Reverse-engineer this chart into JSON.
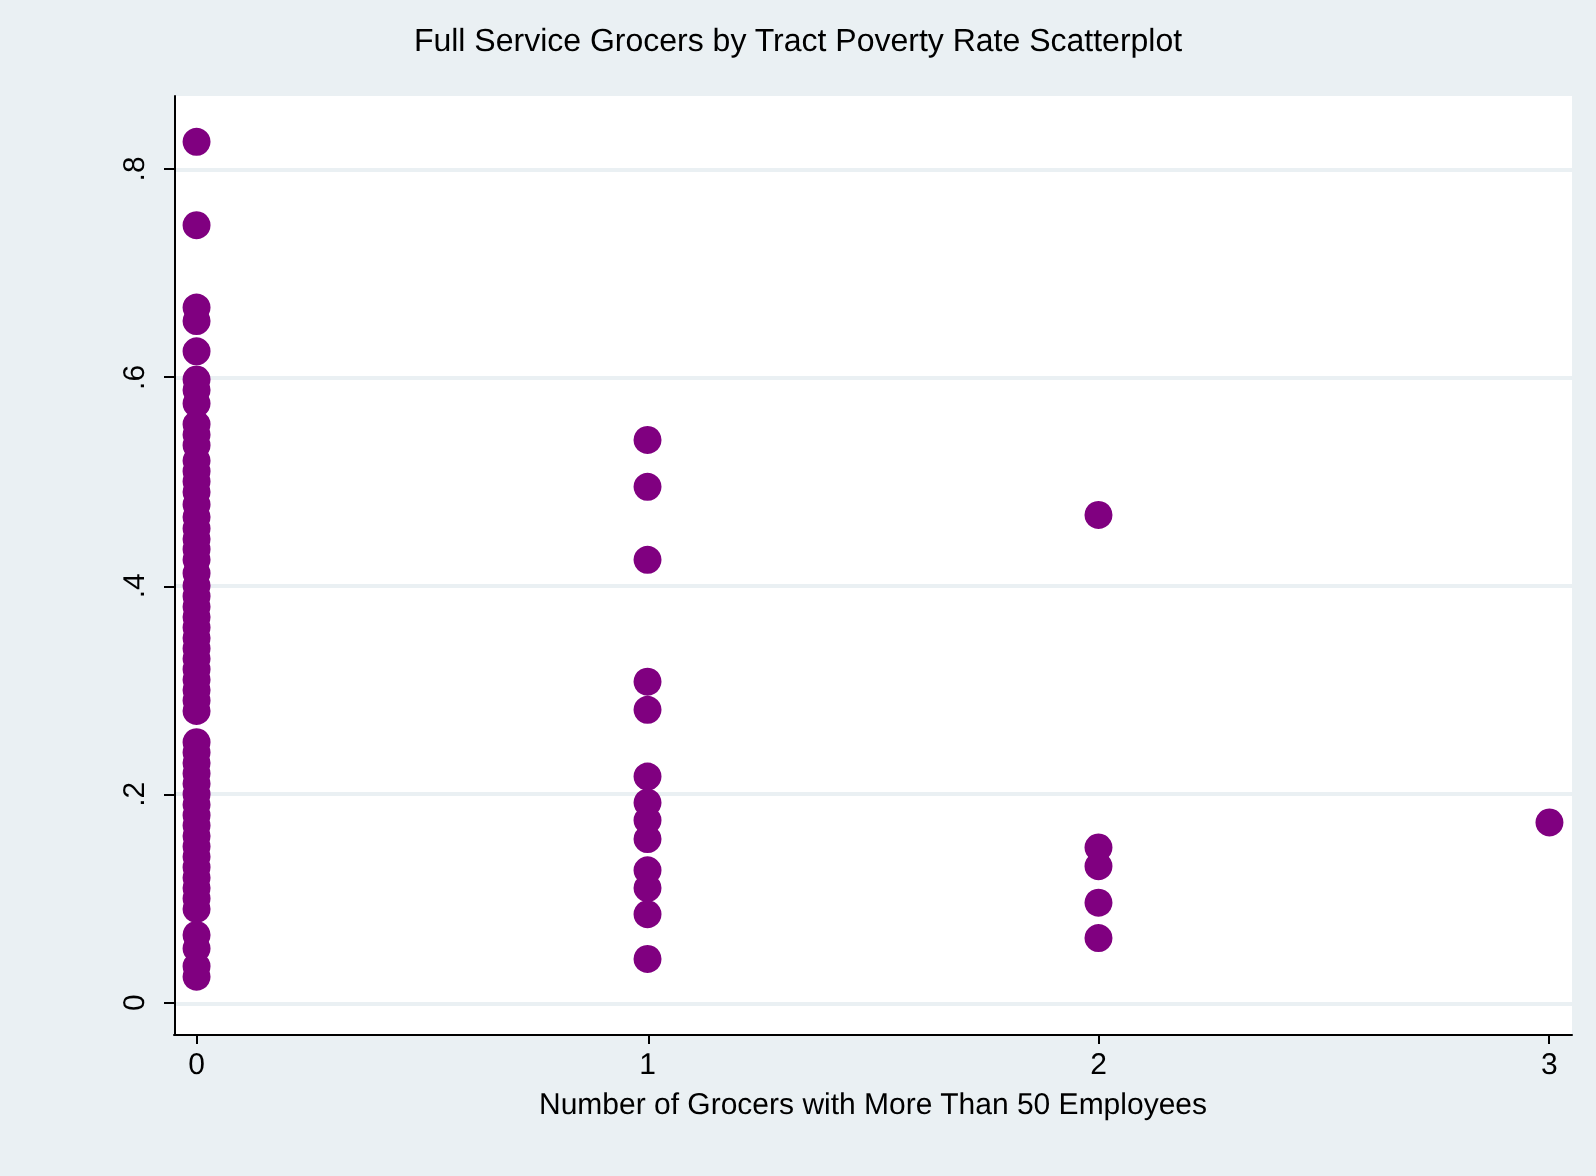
{
  "chart_data": {
    "type": "scatter",
    "title": "Full Service Grocers by Tract Poverty Rate Scatterplot",
    "xlabel": "Number of Grocers with More Than 50 Employees",
    "x": [
      0,
      0,
      0,
      0,
      0,
      0,
      0,
      0,
      0,
      0,
      0,
      0,
      0,
      0,
      0,
      0,
      0,
      0,
      0,
      0,
      0,
      0,
      0,
      0,
      0,
      0,
      0,
      0,
      0,
      0,
      0,
      0,
      0,
      0,
      0,
      0,
      0,
      0,
      0,
      0,
      0,
      0,
      0,
      0,
      0,
      0,
      0,
      0,
      0,
      0,
      0,
      0,
      0,
      0,
      0,
      0,
      1,
      1,
      1,
      1,
      1,
      1,
      1,
      1,
      1,
      1,
      1,
      1,
      1,
      2,
      2,
      2,
      2,
      2,
      3
    ],
    "series": [
      {
        "color": "#800080",
        "values": [
          0.826,
          0.746,
          0.667,
          0.654,
          0.625,
          0.598,
          0.588,
          0.575,
          0.555,
          0.545,
          0.535,
          0.52,
          0.51,
          0.5,
          0.49,
          0.478,
          0.466,
          0.455,
          0.445,
          0.435,
          0.425,
          0.412,
          0.4,
          0.39,
          0.38,
          0.37,
          0.36,
          0.35,
          0.34,
          0.33,
          0.32,
          0.31,
          0.3,
          0.29,
          0.28,
          0.25,
          0.24,
          0.23,
          0.22,
          0.21,
          0.2,
          0.19,
          0.18,
          0.17,
          0.16,
          0.15,
          0.14,
          0.13,
          0.12,
          0.11,
          0.1,
          0.09,
          0.065,
          0.052,
          0.035,
          0.025,
          0.54,
          0.495,
          0.425,
          0.308,
          0.281,
          0.217,
          0.192,
          0.175,
          0.157,
          0.127,
          0.11,
          0.085,
          0.042,
          0.468,
          0.149,
          0.131,
          0.096,
          0.062,
          0.173
        ]
      }
    ],
    "xlim": [
      -0.05,
      3.05
    ],
    "xticks": [
      0,
      1,
      2,
      3
    ],
    "ylim": [
      -0.03,
      0.87
    ],
    "yticks": [
      {
        "value": 0,
        "label": "0"
      },
      {
        "value": 0.2,
        "label": ".2"
      },
      {
        "value": 0.4,
        "label": ".4"
      },
      {
        "value": 0.6,
        "label": ".6"
      },
      {
        "value": 0.8,
        "label": ".8"
      }
    ],
    "grid": "y",
    "marker": "circle"
  }
}
